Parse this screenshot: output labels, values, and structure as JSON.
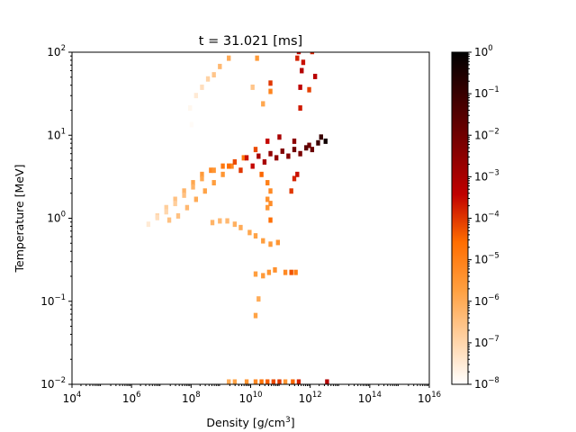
{
  "chart_data": {
    "type": "heatmap",
    "title": "t = 31.021 [ms]",
    "xlabel": "Density [g/cm",
    "xlabel_sup": "3",
    "xlabel_close": "]",
    "ylabel": "Temperature [MeV]",
    "x_scale": "log",
    "y_scale": "log",
    "xlim_exp": [
      4,
      16
    ],
    "ylim_exp": [
      -2,
      2
    ],
    "x_tick_exponents": [
      4,
      6,
      8,
      10,
      12,
      14,
      16
    ],
    "y_tick_exponents": [
      -2,
      -1,
      0,
      1,
      2
    ],
    "colorbar": {
      "scale": "log",
      "range_exp": [
        -8,
        0
      ],
      "tick_exponents": [
        -8,
        -7,
        -6,
        -5,
        -4,
        -3,
        -2,
        -1,
        0
      ],
      "colormap": "gist_heat_r",
      "colors": [
        "#ffffff",
        "#ffd0a0",
        "#ff9f3f",
        "#ff6d00",
        "#c00000",
        "#800000",
        "#400000",
        "#000000"
      ]
    },
    "cells": [
      [
        8.65,
        -0.08,
        -6.2
      ],
      [
        8.9,
        -0.06,
        -6.3
      ],
      [
        9.15,
        -0.06,
        -6.3
      ],
      [
        9.4,
        -0.1,
        -6.1
      ],
      [
        9.6,
        -0.14,
        -6.0
      ],
      [
        9.9,
        -0.2,
        -5.9
      ],
      [
        10.1,
        -0.24,
        -5.8
      ],
      [
        10.35,
        -0.3,
        -5.7
      ],
      [
        10.6,
        -0.34,
        -5.6
      ],
      [
        10.85,
        -0.32,
        -5.5
      ],
      [
        10.1,
        -0.7,
        -5.7
      ],
      [
        10.35,
        -0.72,
        -5.6
      ],
      [
        10.55,
        -0.68,
        -5.5
      ],
      [
        10.75,
        -0.65,
        -5.4
      ],
      [
        11.1,
        -0.68,
        -5.2
      ],
      [
        11.45,
        -0.68,
        -5.0
      ],
      [
        10.6,
        -0.05,
        -4.6
      ],
      [
        7.2,
        -0.05,
        -6.5
      ],
      [
        7.5,
        0.0,
        -6.5
      ],
      [
        7.8,
        0.1,
        -6.3
      ],
      [
        8.1,
        0.2,
        -6.0
      ],
      [
        8.4,
        0.3,
        -5.8
      ],
      [
        8.7,
        0.4,
        -5.7
      ],
      [
        9.0,
        0.5,
        -5.5
      ],
      [
        9.3,
        0.6,
        -5.2
      ],
      [
        9.7,
        0.7,
        -4.8
      ],
      [
        10.1,
        0.8,
        -4.2
      ],
      [
        10.5,
        0.9,
        -3.5
      ],
      [
        10.9,
        0.95,
        -3.0
      ],
      [
        11.4,
        0.9,
        -2.5
      ],
      [
        11.9,
        0.85,
        -2.0
      ],
      [
        12.3,
        0.95,
        -1.0
      ],
      [
        12.45,
        0.9,
        -0.3
      ],
      [
        6.5,
        -0.1,
        -7.5
      ],
      [
        6.8,
        0.0,
        -7.0
      ],
      [
        7.1,
        0.1,
        -6.8
      ],
      [
        7.4,
        0.2,
        -6.5
      ],
      [
        7.7,
        0.3,
        -6.2
      ],
      [
        8.0,
        0.4,
        -5.9
      ],
      [
        8.3,
        0.5,
        -5.6
      ],
      [
        8.6,
        0.55,
        -5.2
      ],
      [
        9.0,
        0.6,
        -4.8
      ],
      [
        9.4,
        0.65,
        -4.2
      ],
      [
        9.8,
        0.7,
        -3.6
      ],
      [
        10.2,
        0.72,
        -3.0
      ],
      [
        10.6,
        0.75,
        -2.6
      ],
      [
        11.0,
        0.78,
        -2.3
      ],
      [
        11.4,
        0.8,
        -2.0
      ],
      [
        11.8,
        0.82,
        -1.6
      ],
      [
        12.2,
        0.88,
        -1.1
      ],
      [
        6.8,
        -0.02,
        -7.2
      ],
      [
        7.1,
        0.05,
        -7.0
      ],
      [
        7.4,
        0.15,
        -6.8
      ],
      [
        7.7,
        0.25,
        -6.5
      ],
      [
        8.0,
        0.35,
        -6.2
      ],
      [
        8.3,
        0.45,
        -5.9
      ],
      [
        8.7,
        0.55,
        -5.5
      ],
      [
        9.2,
        0.6,
        -4.6
      ],
      [
        9.6,
        0.55,
        -4.0
      ],
      [
        10.0,
        0.6,
        -3.5
      ],
      [
        10.4,
        0.65,
        -3.0
      ],
      [
        10.8,
        0.7,
        -2.6
      ],
      [
        11.2,
        0.72,
        -2.4
      ],
      [
        11.6,
        0.75,
        -2.2
      ],
      [
        12.0,
        0.8,
        -1.9
      ],
      [
        10.3,
        0.5,
        -4.5
      ],
      [
        10.5,
        0.4,
        -5.0
      ],
      [
        10.6,
        0.3,
        -5.2
      ],
      [
        10.5,
        0.2,
        -5.4
      ],
      [
        10.5,
        0.1,
        -5.5
      ],
      [
        10.6,
        0.15,
        -5.3
      ],
      [
        11.3,
        0.3,
        -4.0
      ],
      [
        11.4,
        0.45,
        -3.8
      ],
      [
        11.5,
        0.5,
        -3.6
      ],
      [
        7.9,
        1.3,
        -7.8
      ],
      [
        8.1,
        1.45,
        -7.5
      ],
      [
        8.3,
        1.55,
        -7.2
      ],
      [
        8.5,
        1.65,
        -6.9
      ],
      [
        8.7,
        1.7,
        -6.6
      ],
      [
        8.9,
        1.8,
        -6.3
      ],
      [
        9.2,
        1.9,
        -6.0
      ],
      [
        9.5,
        2.0,
        -5.8
      ],
      [
        10.0,
        2.0,
        -6.1
      ],
      [
        10.15,
        1.9,
        -5.6
      ],
      [
        10.6,
        1.6,
        -4.0
      ],
      [
        11.5,
        1.9,
        -3.8
      ],
      [
        11.55,
        1.98,
        -3.5
      ],
      [
        11.7,
        1.85,
        -3.6
      ],
      [
        12.0,
        1.98,
        -3.8
      ],
      [
        12.1,
        1.68,
        -3.3
      ],
      [
        11.6,
        1.3,
        -3.7
      ],
      [
        11.6,
        1.55,
        -3.4
      ],
      [
        11.65,
        1.75,
        -3.2
      ],
      [
        11.9,
        1.52,
        -4.1
      ],
      [
        10.0,
        1.55,
        -6.6
      ],
      [
        10.35,
        1.35,
        -5.9
      ],
      [
        10.6,
        1.5,
        -5.1
      ],
      [
        8.0,
        1.0,
        -8.0
      ],
      [
        7.95,
        1.1,
        -7.9
      ],
      [
        9.2,
        -2.0,
        -6.0
      ],
      [
        9.4,
        -2.0,
        -5.8
      ],
      [
        9.8,
        -2.0,
        -5.5
      ],
      [
        10.1,
        -2.0,
        -5.2
      ],
      [
        10.3,
        -2.0,
        -4.7
      ],
      [
        10.5,
        -2.0,
        -4.4
      ],
      [
        10.7,
        -2.0,
        -4.2
      ],
      [
        10.9,
        -2.0,
        -4.0
      ],
      [
        11.1,
        -2.0,
        -5.5
      ],
      [
        11.35,
        -2.0,
        -4.5
      ],
      [
        11.55,
        -2.0,
        -3.8
      ],
      [
        12.5,
        -2.0,
        -3.2
      ],
      [
        10.1,
        -1.2,
        -5.8
      ],
      [
        11.3,
        -0.68,
        -4.3
      ],
      [
        10.2,
        -1.0,
        -6.0
      ]
    ]
  }
}
